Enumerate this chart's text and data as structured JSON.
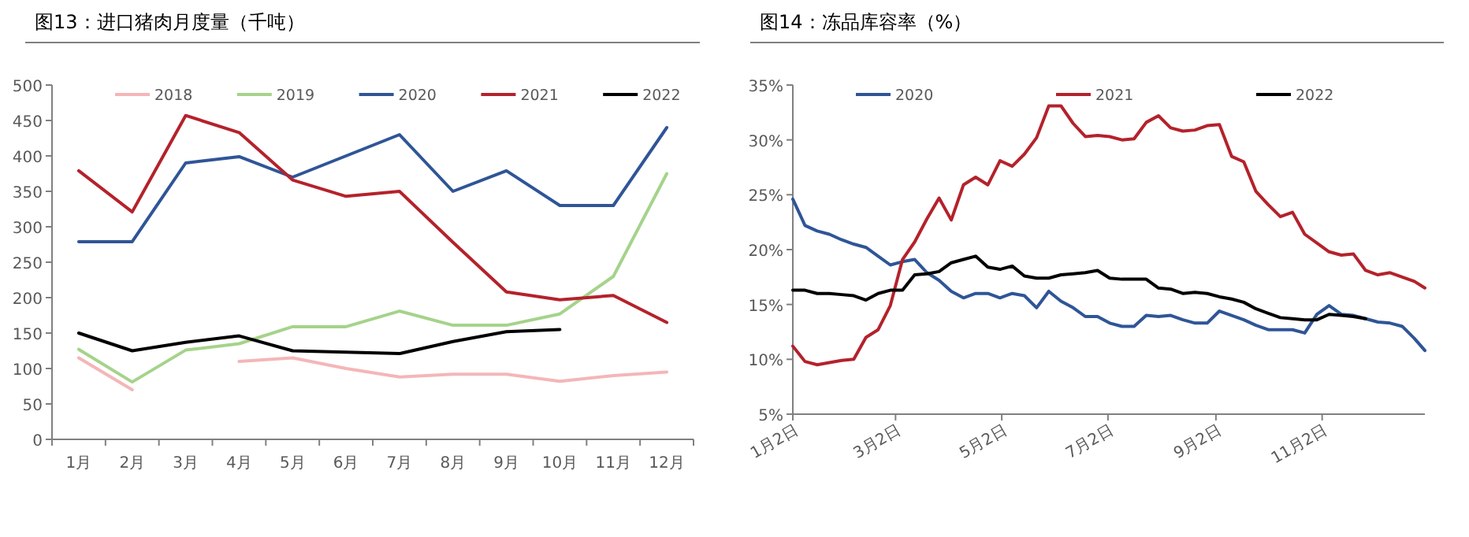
{
  "chart_data": [
    {
      "type": "line",
      "title": "图13：进口猪肉月度量（千吨）",
      "categories": [
        "1月",
        "2月",
        "3月",
        "4月",
        "5月",
        "6月",
        "7月",
        "8月",
        "9月",
        "10月",
        "11月",
        "12月"
      ],
      "series": [
        {
          "name": "2018",
          "color": "#f4b6b8",
          "values": [
            115,
            70,
            null,
            110,
            115,
            100,
            88,
            92,
            92,
            82,
            90,
            95
          ]
        },
        {
          "name": "2019",
          "color": "#a5d38a",
          "values": [
            127,
            81,
            126,
            135,
            159,
            159,
            181,
            161,
            161,
            177,
            230,
            375
          ]
        },
        {
          "name": "2020",
          "color": "#2f5597",
          "values": [
            279,
            279,
            390,
            399,
            370,
            400,
            430,
            350,
            379,
            330,
            330,
            440
          ]
        },
        {
          "name": "2021",
          "color": "#b4222b",
          "values": [
            379,
            321,
            457,
            433,
            366,
            343,
            350,
            278,
            208,
            197,
            203,
            165
          ]
        },
        {
          "name": "2022",
          "color": "#000000",
          "values": [
            150,
            125,
            137,
            146,
            125,
            123,
            121,
            138,
            152,
            155,
            null,
            null
          ]
        }
      ],
      "ylim": [
        0,
        500
      ],
      "yticks": [
        0,
        50,
        100,
        150,
        200,
        250,
        300,
        350,
        400,
        450,
        500
      ],
      "legend": "top"
    },
    {
      "type": "line",
      "title": "图14：冻品库容率（%）",
      "x": [
        "--01-02",
        "--01-09",
        "--01-16",
        "--01-23",
        "--01-30",
        "--02-06",
        "--02-13",
        "--02-20",
        "--02-27",
        "--03-06",
        "--03-13",
        "--03-20",
        "--03-27",
        "--04-03",
        "--04-10",
        "--04-17",
        "--04-24",
        "--05-01",
        "--05-08",
        "--05-15",
        "--05-22",
        "--05-29",
        "--06-05",
        "--06-12",
        "--06-19",
        "--06-26",
        "--07-03",
        "--07-10",
        "--07-17",
        "--07-24",
        "--07-31",
        "--08-07",
        "--08-14",
        "--08-21",
        "--08-28",
        "--09-04",
        "--09-11",
        "--09-18",
        "--09-25",
        "--10-02",
        "--10-09",
        "--10-16",
        "--10-23",
        "--10-30",
        "--11-06",
        "--11-13",
        "--11-20",
        "--11-27",
        "--12-04",
        "--12-11",
        "--12-18",
        "--12-25",
        "--12-31"
      ],
      "series": [
        {
          "name": "2020",
          "color": "#2f5597",
          "values": [
            24.6,
            22.2,
            21.7,
            21.4,
            20.9,
            20.5,
            20.2,
            19.4,
            18.6,
            18.9,
            19.1,
            17.9,
            17.2,
            16.2,
            15.6,
            16.0,
            16.0,
            15.6,
            16.0,
            15.8,
            14.7,
            16.2,
            15.3,
            14.7,
            13.9,
            13.9,
            13.3,
            13.0,
            13.0,
            14.0,
            13.9,
            14.0,
            13.6,
            13.3,
            13.3,
            14.4,
            14.0,
            13.6,
            13.1,
            12.7,
            12.7,
            12.7,
            12.4,
            14.1,
            14.9,
            14.1,
            14.0,
            13.7,
            13.4,
            13.3,
            13.0,
            11.9,
            10.8
          ]
        },
        {
          "name": "2021",
          "color": "#b4222b",
          "values": [
            11.2,
            9.8,
            9.5,
            9.7,
            9.9,
            10.0,
            12.0,
            12.7,
            14.9,
            19.1,
            20.7,
            22.8,
            24.7,
            22.7,
            25.9,
            26.6,
            25.9,
            28.1,
            27.6,
            28.7,
            30.2,
            33.1,
            33.1,
            31.5,
            30.3,
            30.4,
            30.3,
            30.0,
            30.1,
            31.6,
            32.2,
            31.1,
            30.8,
            30.9,
            31.3,
            31.4,
            28.5,
            28.0,
            25.3,
            24.1,
            23.0,
            23.4,
            21.4,
            20.6,
            19.8,
            19.5,
            19.6,
            18.1,
            17.7,
            17.9,
            17.5,
            17.1,
            16.5
          ]
        },
        {
          "name": "2022",
          "color": "#000000",
          "values": [
            16.3,
            16.3,
            16.0,
            16.0,
            15.9,
            15.8,
            15.4,
            16.0,
            16.3,
            16.3,
            17.7,
            17.8,
            18.0,
            18.8,
            19.1,
            19.4,
            18.4,
            18.2,
            18.5,
            17.6,
            17.4,
            17.4,
            17.7,
            17.8,
            17.9,
            18.1,
            17.4,
            17.3,
            17.3,
            17.3,
            16.5,
            16.4,
            16.0,
            16.1,
            16.0,
            15.7,
            15.5,
            15.2,
            14.6,
            14.2,
            13.8,
            13.7,
            13.6,
            13.6,
            14.1,
            14.0,
            13.9,
            13.7,
            null,
            null,
            null,
            null,
            null
          ]
        }
      ],
      "xlim": [
        "--01-02",
        "--12-31"
      ],
      "xticks": [
        {
          "value": "--01-02",
          "label": "1月2日"
        },
        {
          "value": "--03-02",
          "label": "3月2日"
        },
        {
          "value": "--05-02",
          "label": "5月2日"
        },
        {
          "value": "--07-02",
          "label": "7月2日"
        },
        {
          "value": "--09-02",
          "label": "9月2日"
        },
        {
          "value": "--11-02",
          "label": "11月2日"
        }
      ],
      "ylim": [
        5,
        35
      ],
      "yticks": [
        {
          "value": 5,
          "label": "5%"
        },
        {
          "value": 10,
          "label": "10%"
        },
        {
          "value": 15,
          "label": "15%"
        },
        {
          "value": 20,
          "label": "20%"
        },
        {
          "value": 25,
          "label": "25%"
        },
        {
          "value": 30,
          "label": "30%"
        },
        {
          "value": 35,
          "label": "35%"
        }
      ],
      "legend": "top"
    }
  ]
}
